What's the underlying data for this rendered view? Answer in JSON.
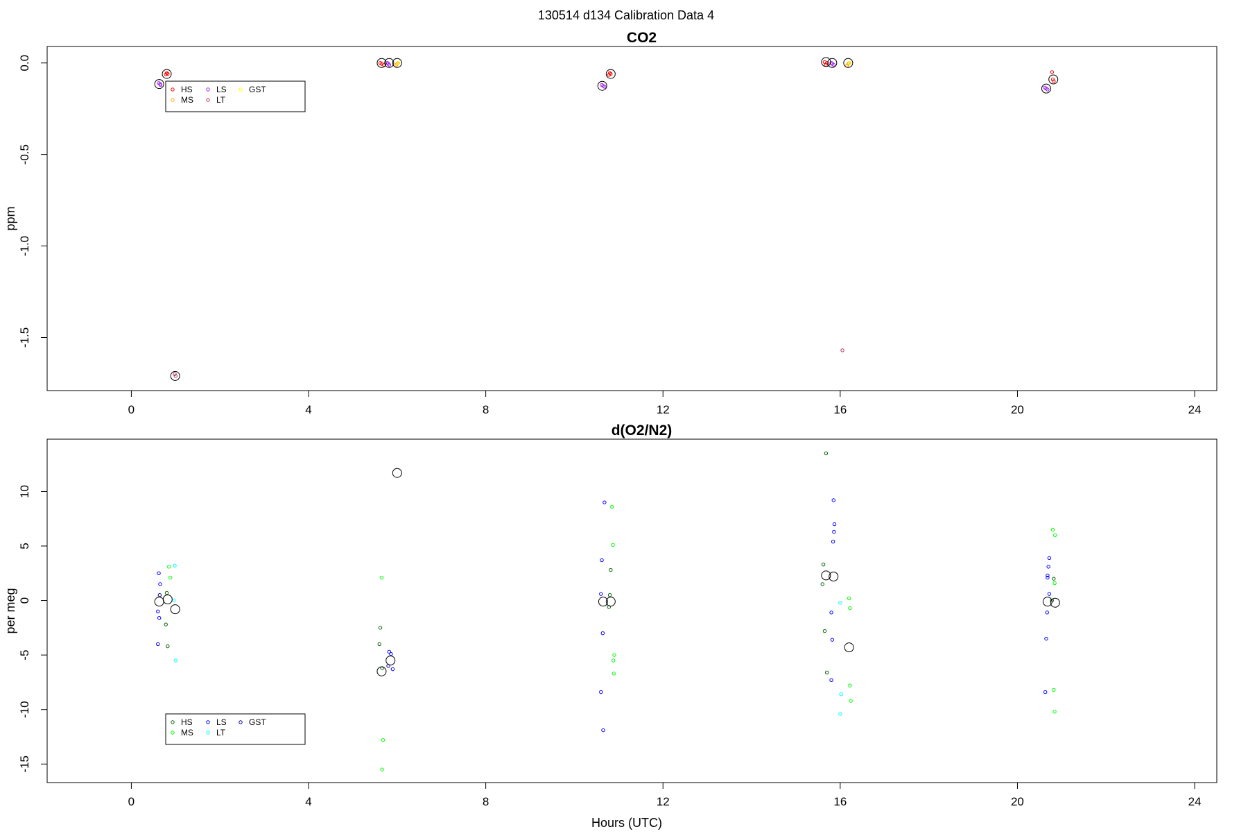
{
  "page_title": "130514   d134   Calibration Data 4",
  "chart_data": [
    {
      "type": "scatter",
      "title": "CO2",
      "xlabel": "",
      "ylabel": "ppm",
      "xlim": [
        -1.9,
        24.5
      ],
      "ylim": [
        -1.79,
        0.09
      ],
      "x_ticks": [
        0,
        4,
        8,
        12,
        16,
        20,
        24
      ],
      "x_tick_labels": [
        "0",
        "4",
        "8",
        "12",
        "16",
        "20",
        "24"
      ],
      "y_ticks": [
        0,
        -0.5,
        -1.0,
        -1.5
      ],
      "y_tick_labels": [
        "0.0",
        "-0.5",
        "-1.0",
        "-1.5"
      ],
      "legend": {
        "placement": "top-left",
        "entries": [
          {
            "name": "HS",
            "color": "#ff0000"
          },
          {
            "name": "MS",
            "color": "#ffa500"
          },
          {
            "name": "LS",
            "color": "#a020f0"
          },
          {
            "name": "LT",
            "color": "#b03060"
          },
          {
            "name": "GST",
            "color": "#ffff00"
          }
        ]
      },
      "series": [
        {
          "name": "HS",
          "color": "#ff0000",
          "points": [
            [
              0.8,
              -0.055
            ],
            [
              0.82,
              -0.06
            ],
            [
              0.78,
              -0.062
            ],
            [
              5.62,
              0.0
            ],
            [
              5.65,
              -0.005
            ],
            [
              5.7,
              -0.01
            ],
            [
              10.8,
              -0.055
            ],
            [
              10.82,
              -0.06
            ],
            [
              10.78,
              -0.065
            ],
            [
              15.65,
              0.005
            ],
            [
              15.7,
              0.0
            ],
            [
              15.68,
              -0.01
            ],
            [
              20.8,
              -0.09
            ],
            [
              20.82,
              -0.1
            ],
            [
              20.78,
              -0.05
            ]
          ]
        },
        {
          "name": "MS",
          "color": "#ffa500",
          "points": [
            [
              6.0,
              -0.005
            ],
            [
              6.02,
              0.0
            ],
            [
              5.98,
              -0.01
            ],
            [
              16.18,
              -0.005
            ],
            [
              16.2,
              0.0
            ],
            [
              16.15,
              -0.015
            ]
          ]
        },
        {
          "name": "LS",
          "color": "#a020f0",
          "points": [
            [
              0.62,
              -0.11
            ],
            [
              0.65,
              -0.115
            ],
            [
              0.66,
              -0.12
            ],
            [
              5.78,
              0.0
            ],
            [
              5.8,
              -0.005
            ],
            [
              5.82,
              -0.01
            ],
            [
              10.62,
              -0.12
            ],
            [
              10.65,
              -0.125
            ],
            [
              10.68,
              -0.13
            ],
            [
              15.8,
              0.0
            ],
            [
              15.82,
              -0.005
            ],
            [
              15.85,
              -0.01
            ],
            [
              20.62,
              -0.135
            ],
            [
              20.65,
              -0.14
            ],
            [
              20.68,
              -0.145
            ]
          ]
        },
        {
          "name": "LT",
          "color": "#b03060",
          "points": [
            [
              0.98,
              -1.7
            ],
            [
              1.0,
              -1.71
            ],
            [
              16.05,
              -1.57
            ]
          ]
        },
        {
          "name": "GST",
          "color": "#ffff00",
          "points": [
            [
              6.01,
              0.0
            ],
            [
              16.21,
              0.0
            ]
          ]
        },
        {
          "name": "",
          "marker": "mean-circle",
          "color": "#000000",
          "points": [
            [
              0.8,
              -0.06
            ],
            [
              0.63,
              -0.115
            ],
            [
              0.99,
              -1.71
            ],
            [
              5.65,
              0.0
            ],
            [
              5.82,
              0.0
            ],
            [
              6.0,
              0.0
            ],
            [
              10.82,
              -0.06
            ],
            [
              10.63,
              -0.125
            ],
            [
              15.68,
              0.005
            ],
            [
              15.82,
              0.0
            ],
            [
              16.18,
              0.0
            ],
            [
              20.81,
              -0.09
            ],
            [
              20.65,
              -0.14
            ]
          ]
        }
      ]
    },
    {
      "type": "scatter",
      "title": "d(O2/N2)",
      "xlabel": "Hours (UTC)",
      "ylabel": "per meg",
      "xlim": [
        -1.9,
        24.5
      ],
      "ylim": [
        -16.7,
        14.8
      ],
      "x_ticks": [
        0,
        4,
        8,
        12,
        16,
        20,
        24
      ],
      "x_tick_labels": [
        "0",
        "4",
        "8",
        "12",
        "16",
        "20",
        "24"
      ],
      "y_ticks": [
        10,
        5,
        0,
        -5,
        -10,
        -15
      ],
      "y_tick_labels": [
        "10",
        "5",
        "0",
        "-5",
        "-10",
        "-15"
      ],
      "legend": {
        "placement": "bottom-left",
        "entries": [
          {
            "name": "HS",
            "color": "#006400"
          },
          {
            "name": "MS",
            "color": "#00ff00"
          },
          {
            "name": "LS",
            "color": "#0000ff"
          },
          {
            "name": "LT",
            "color": "#00ffff"
          },
          {
            "name": "GST",
            "color": "#00008b"
          }
        ]
      },
      "series": [
        {
          "name": "HS",
          "color": "#006400",
          "points": [
            [
              0.8,
              0.7
            ],
            [
              0.78,
              -2.2
            ],
            [
              0.82,
              -4.2
            ],
            [
              5.62,
              -2.5
            ],
            [
              5.6,
              -4.0
            ],
            [
              5.66,
              -6.2
            ],
            [
              10.82,
              2.8
            ],
            [
              10.8,
              0.5
            ],
            [
              10.78,
              -0.6
            ],
            [
              15.68,
              13.5
            ],
            [
              15.62,
              3.3
            ],
            [
              15.6,
              1.5
            ],
            [
              15.65,
              -2.8
            ],
            [
              15.7,
              -6.6
            ],
            [
              20.82,
              2.0
            ],
            [
              20.78,
              0.0
            ]
          ]
        },
        {
          "name": "MS",
          "color": "#00ff00",
          "points": [
            [
              0.85,
              3.1
            ],
            [
              0.88,
              2.1
            ],
            [
              5.65,
              2.1
            ],
            [
              5.68,
              -12.8
            ],
            [
              5.66,
              -15.5
            ],
            [
              10.85,
              8.6
            ],
            [
              10.87,
              5.1
            ],
            [
              10.9,
              -5.0
            ],
            [
              10.88,
              -5.5
            ],
            [
              10.89,
              -6.7
            ],
            [
              16.2,
              0.2
            ],
            [
              16.22,
              -0.7
            ],
            [
              16.22,
              -7.8
            ],
            [
              16.24,
              -9.2
            ],
            [
              20.8,
              6.5
            ],
            [
              20.85,
              6.0
            ],
            [
              20.84,
              1.6
            ],
            [
              20.82,
              -8.2
            ],
            [
              20.84,
              -10.2
            ]
          ]
        },
        {
          "name": "LS",
          "color": "#0000ff",
          "points": [
            [
              0.62,
              2.5
            ],
            [
              0.65,
              1.5
            ],
            [
              0.6,
              -1.0
            ],
            [
              0.63,
              -1.6
            ],
            [
              0.6,
              -4.0
            ],
            [
              5.82,
              -4.7
            ],
            [
              5.86,
              -4.9
            ],
            [
              5.9,
              -6.3
            ],
            [
              10.68,
              9.0
            ],
            [
              10.62,
              3.7
            ],
            [
              10.6,
              0.6
            ],
            [
              10.64,
              -3.0
            ],
            [
              10.6,
              -8.4
            ],
            [
              10.65,
              -11.9
            ],
            [
              15.85,
              9.2
            ],
            [
              15.87,
              7.0
            ],
            [
              15.86,
              6.3
            ],
            [
              15.84,
              5.4
            ],
            [
              15.8,
              -1.1
            ],
            [
              15.82,
              -3.6
            ],
            [
              15.8,
              -7.3
            ],
            [
              20.72,
              3.9
            ],
            [
              20.7,
              3.1
            ],
            [
              20.68,
              2.3
            ],
            [
              20.68,
              2.1
            ],
            [
              20.72,
              0.6
            ],
            [
              20.67,
              -1.1
            ],
            [
              20.65,
              -3.5
            ],
            [
              20.63,
              -8.4
            ]
          ]
        },
        {
          "name": "LT",
          "color": "#00ffff",
          "points": [
            [
              0.98,
              3.2
            ],
            [
              0.96,
              0.0
            ],
            [
              1.0,
              -5.5
            ],
            [
              16.0,
              -0.2
            ],
            [
              16.02,
              -8.6
            ],
            [
              16.0,
              -10.4
            ]
          ]
        },
        {
          "name": "GST",
          "color": "#00008b",
          "points": [
            [
              0.64,
              0.5
            ],
            [
              5.8,
              -6.0
            ]
          ]
        },
        {
          "name": "",
          "marker": "mean-circle",
          "color": "#000000",
          "points": [
            [
              0.63,
              -0.1
            ],
            [
              0.82,
              0.1
            ],
            [
              0.99,
              -0.8
            ],
            [
              5.65,
              -6.5
            ],
            [
              5.85,
              -5.5
            ],
            [
              6.0,
              11.7
            ],
            [
              10.65,
              -0.1
            ],
            [
              10.82,
              -0.1
            ],
            [
              15.68,
              2.3
            ],
            [
              15.85,
              2.2
            ],
            [
              16.2,
              -4.3
            ],
            [
              20.68,
              -0.1
            ],
            [
              20.85,
              -0.2
            ]
          ]
        }
      ]
    }
  ]
}
